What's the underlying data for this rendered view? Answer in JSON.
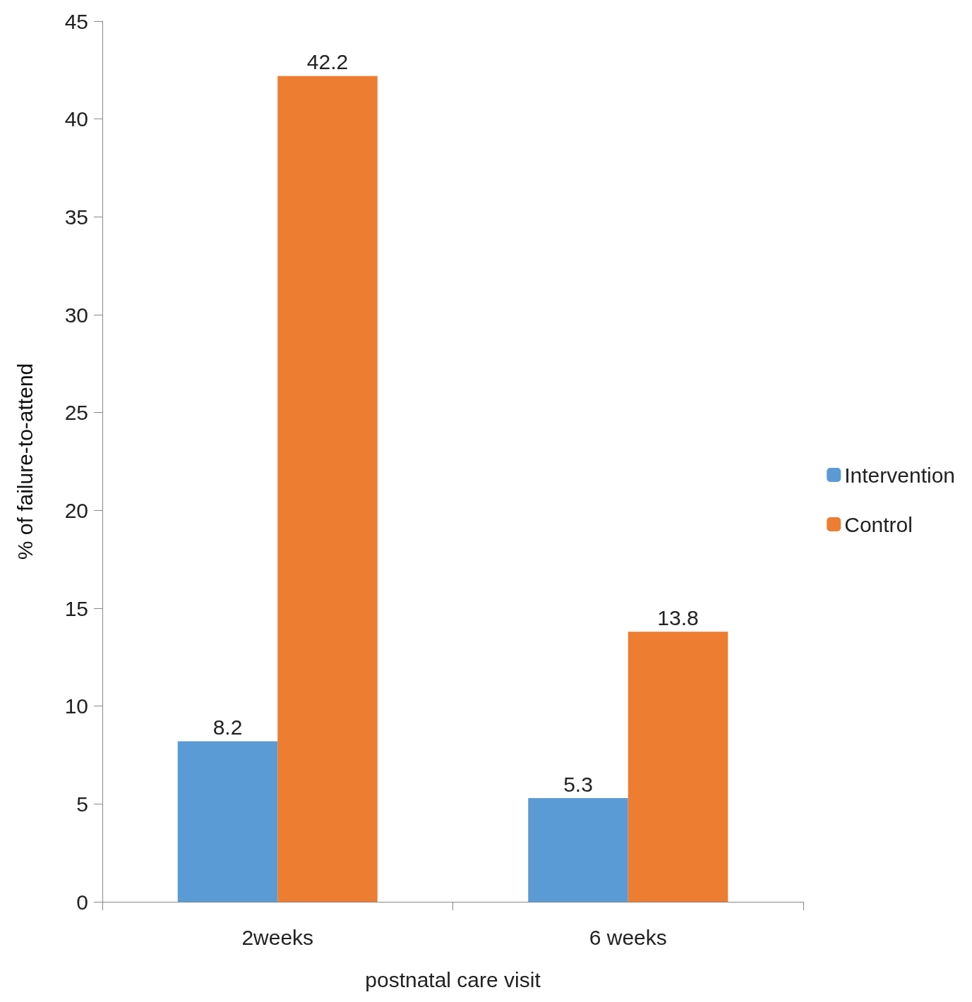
{
  "chart_data": {
    "type": "bar",
    "xlabel": "postnatal care visit",
    "ylabel": "% of failure-to-attend",
    "categories": [
      "2weeks",
      "6 weeks"
    ],
    "series": [
      {
        "name": "Intervention",
        "color": "#5b9bd5",
        "values": [
          8.2,
          5.3
        ]
      },
      {
        "name": "Control",
        "color": "#ed7d31",
        "values": [
          42.2,
          13.8
        ]
      }
    ],
    "ylim": [
      0,
      45
    ],
    "yticks": [
      0,
      5,
      10,
      15,
      20,
      25,
      30,
      35,
      40,
      45
    ],
    "grid": false,
    "legend": "right",
    "data_labels": true
  }
}
